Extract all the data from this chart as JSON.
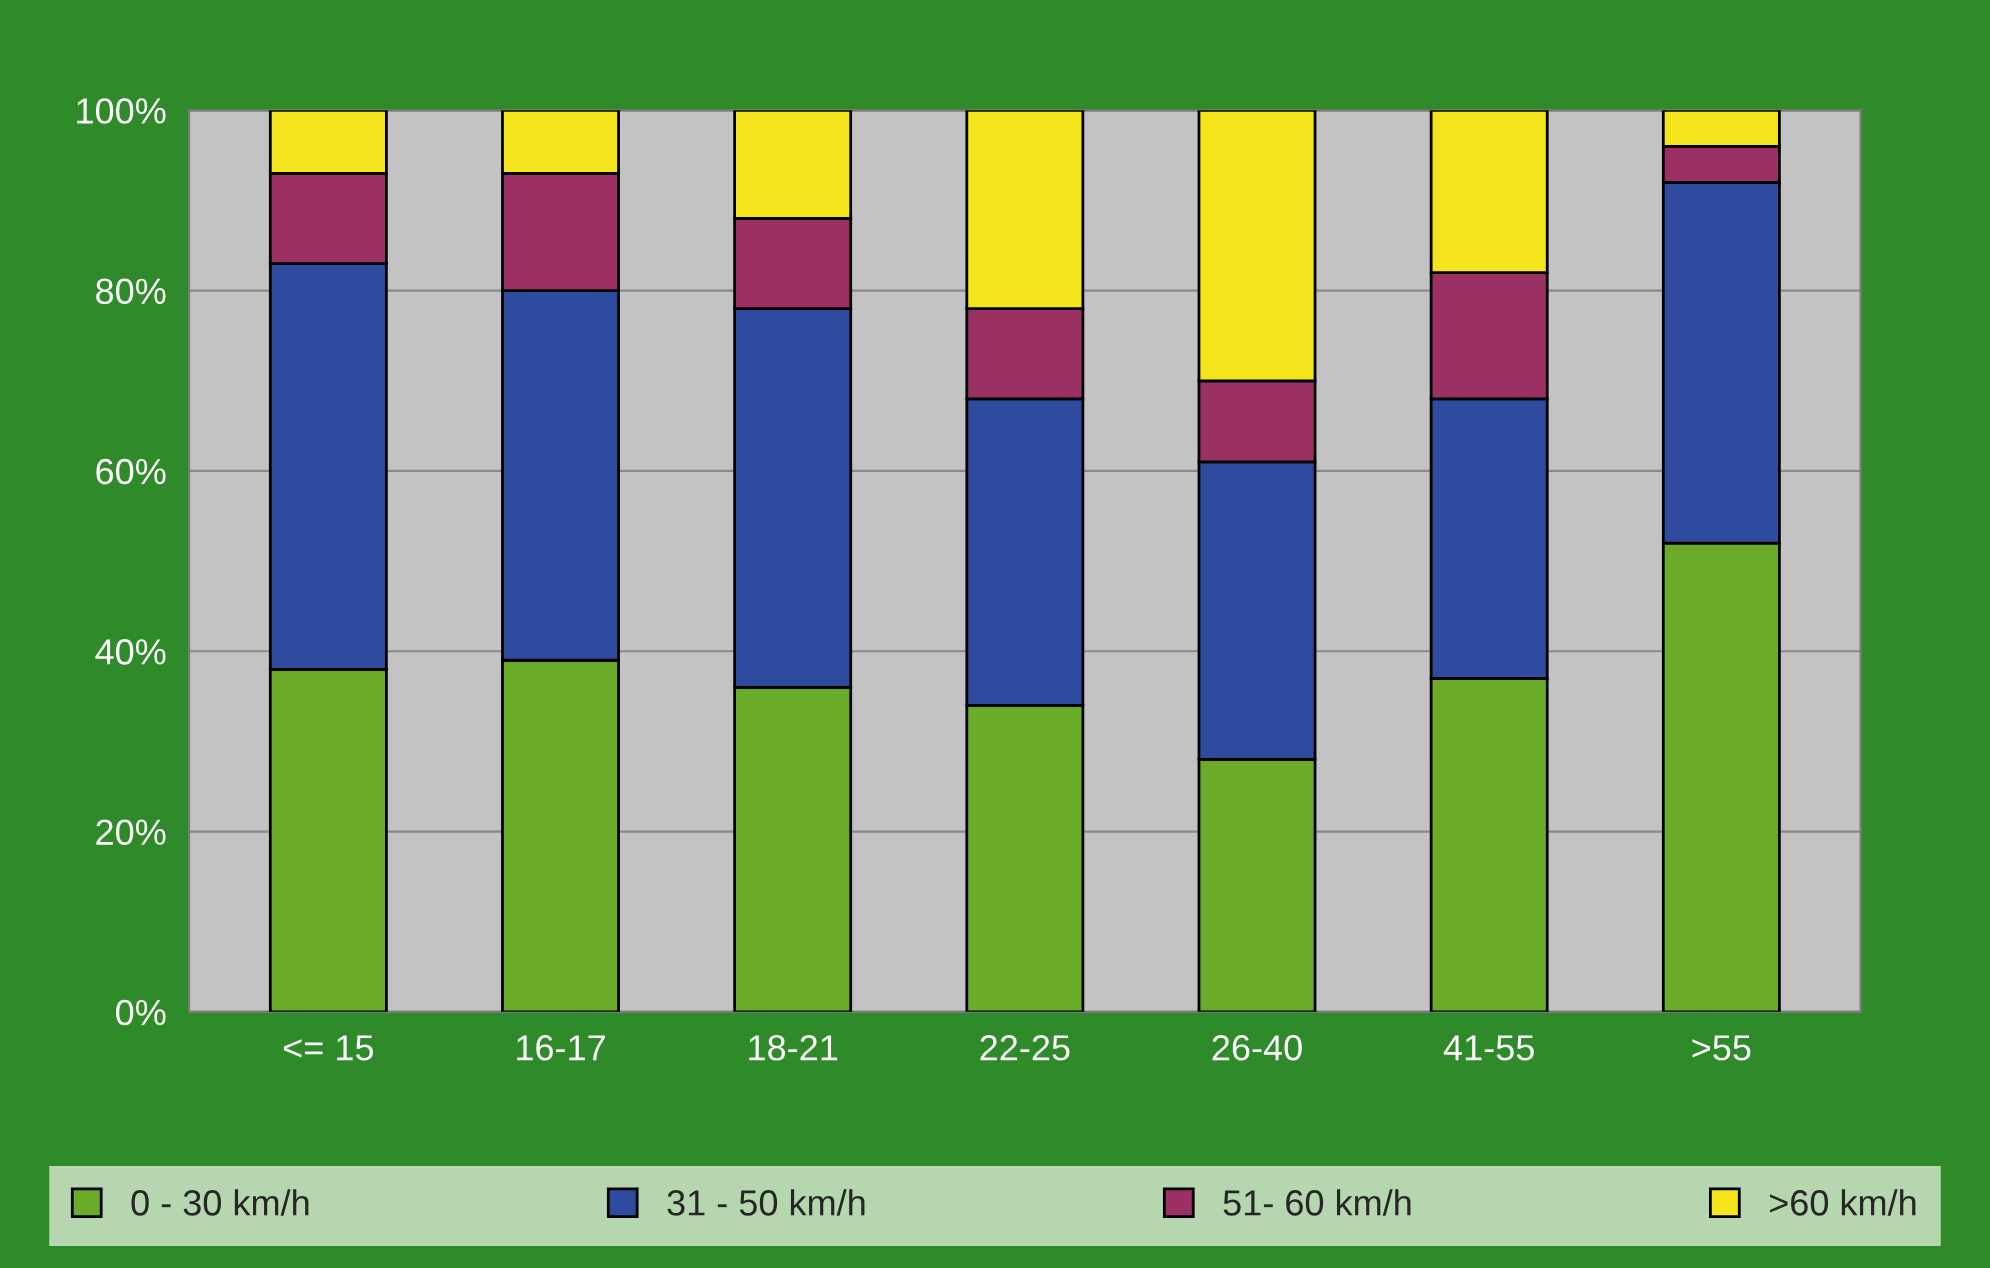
{
  "chart_data": {
    "type": "bar",
    "stacked": true,
    "categories": [
      "<= 15",
      "16-17",
      "18-21",
      "22-25",
      "26-40",
      "41-55",
      ">55"
    ],
    "series": [
      {
        "name": "0 - 30 km/h",
        "color": "#6aab2a",
        "values": [
          38,
          39,
          36,
          34,
          28,
          37,
          52
        ]
      },
      {
        "name": "31 - 50 km/h",
        "color": "#2f4b9f",
        "values": [
          45,
          41,
          42,
          34,
          33,
          31,
          40
        ]
      },
      {
        "name": "51- 60 km/h",
        "color": "#9b3064",
        "values": [
          10,
          13,
          10,
          10,
          9,
          14,
          4
        ]
      },
      {
        "name": ">60 km/h",
        "color": "#f4e41c",
        "values": [
          7,
          7,
          12,
          22,
          30,
          18,
          4
        ]
      }
    ],
    "ylim": [
      0,
      100
    ],
    "yticks": [
      {
        "value": 0,
        "label": "0%"
      },
      {
        "value": 20,
        "label": "20%"
      },
      {
        "value": 40,
        "label": "40%"
      },
      {
        "value": 60,
        "label": "60%"
      },
      {
        "value": 80,
        "label": "80%"
      },
      {
        "value": 100,
        "label": "100%"
      }
    ],
    "grid": "y",
    "legend": "bottom"
  }
}
